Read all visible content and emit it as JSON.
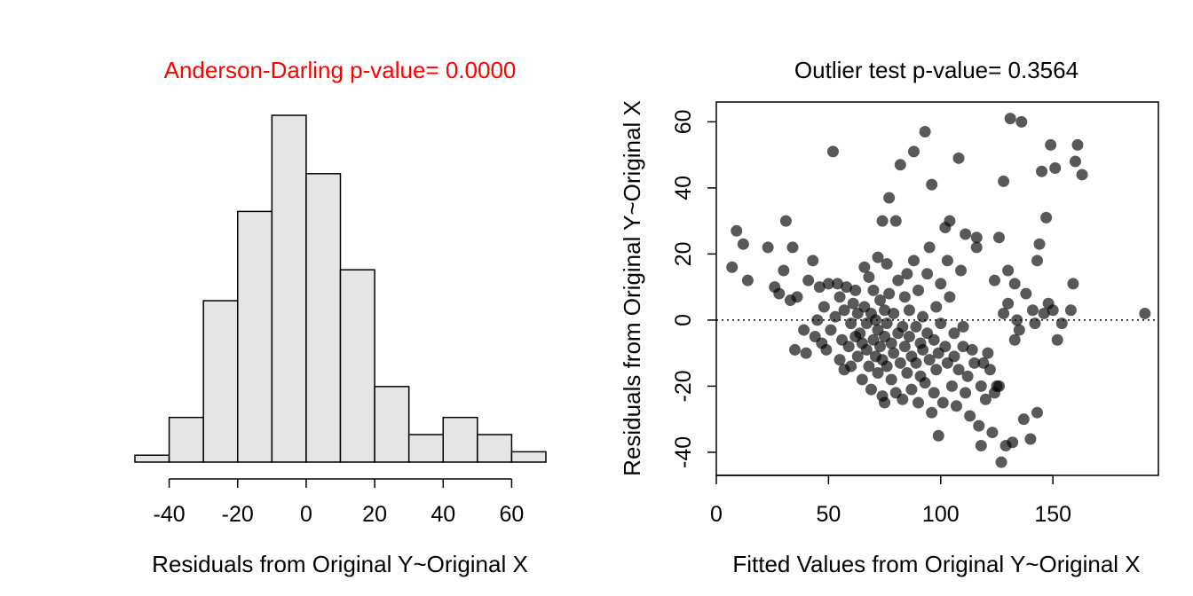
{
  "chart_data": [
    {
      "type": "bar",
      "subtype": "histogram",
      "title": "Anderson-Darling p-value= 0.0000",
      "title_color": "#ff0000",
      "xlabel": "Residuals from Original Y~Original X",
      "ylabel": "",
      "bar_fill": "#e5e5e5",
      "bar_stroke": "#000000",
      "bins": [
        {
          "x0": -50,
          "x1": -40,
          "count": 2
        },
        {
          "x0": -40,
          "x1": -30,
          "count": 13
        },
        {
          "x0": -30,
          "x1": -20,
          "count": 47
        },
        {
          "x0": -20,
          "x1": -10,
          "count": 73
        },
        {
          "x0": -10,
          "x1": 0,
          "count": 101
        },
        {
          "x0": 0,
          "x1": 10,
          "count": 84
        },
        {
          "x0": 10,
          "x1": 20,
          "count": 56
        },
        {
          "x0": 20,
          "x1": 30,
          "count": 22
        },
        {
          "x0": 30,
          "x1": 40,
          "count": 8
        },
        {
          "x0": 40,
          "x1": 50,
          "count": 13
        },
        {
          "x0": 50,
          "x1": 60,
          "count": 8
        },
        {
          "x0": 60,
          "x1": 70,
          "count": 3
        }
      ],
      "xlim": [
        -50,
        70
      ],
      "ylim": [
        0,
        101
      ],
      "x_ticks": [
        -40,
        -20,
        0,
        20,
        40,
        60
      ],
      "x_tick_labels": [
        "-40",
        "-20",
        "0",
        "20",
        "40",
        "60"
      ],
      "y_axis_shown": false
    },
    {
      "type": "scatter",
      "title": "Outlier test p-value= 0.3564",
      "title_color": "#000000",
      "xlabel": "Fitted Values from Original Y~Original X",
      "ylabel": "Residuals from Original Y~Original X",
      "point_color": "#000000",
      "point_opacity": 0.65,
      "xlim": [
        0,
        197
      ],
      "ylim": [
        -47,
        66
      ],
      "x_ticks": [
        0,
        50,
        100,
        150
      ],
      "x_tick_labels": [
        "0",
        "50",
        "100",
        "150"
      ],
      "y_ticks": [
        -40,
        -20,
        0,
        20,
        40,
        60
      ],
      "y_tick_labels": [
        "-40",
        "-20",
        "0",
        "20",
        "40",
        "60"
      ],
      "reference_line": {
        "y": 0,
        "style": "dotted"
      },
      "grid": false,
      "points": [
        [
          7,
          16
        ],
        [
          9,
          27
        ],
        [
          12,
          23
        ],
        [
          14,
          12
        ],
        [
          23,
          22
        ],
        [
          26,
          10
        ],
        [
          28,
          8
        ],
        [
          30,
          15
        ],
        [
          31,
          30
        ],
        [
          33,
          6
        ],
        [
          34,
          22
        ],
        [
          35,
          -9
        ],
        [
          36,
          7
        ],
        [
          39,
          -3
        ],
        [
          40,
          -10
        ],
        [
          41,
          12
        ],
        [
          43,
          18
        ],
        [
          44,
          -5
        ],
        [
          45,
          0
        ],
        [
          46,
          10
        ],
        [
          47,
          -7
        ],
        [
          48,
          4
        ],
        [
          49,
          -9
        ],
        [
          50,
          11
        ],
        [
          51,
          -3
        ],
        [
          52,
          51
        ],
        [
          53,
          1
        ],
        [
          54,
          11
        ],
        [
          55,
          -12
        ],
        [
          55,
          7
        ],
        [
          56,
          -6
        ],
        [
          57,
          3
        ],
        [
          57,
          -15
        ],
        [
          58,
          10
        ],
        [
          59,
          -8
        ],
        [
          60,
          -1
        ],
        [
          60,
          -14
        ],
        [
          61,
          5
        ],
        [
          62,
          -5
        ],
        [
          62,
          9
        ],
        [
          63,
          -11
        ],
        [
          63,
          2
        ],
        [
          64,
          -4
        ],
        [
          65,
          -18
        ],
        [
          65,
          -7
        ],
        [
          66,
          16
        ],
        [
          66,
          4
        ],
        [
          67,
          -1
        ],
        [
          67,
          -9
        ],
        [
          68,
          -14
        ],
        [
          68,
          13
        ],
        [
          69,
          2
        ],
        [
          69,
          -21
        ],
        [
          70,
          -6
        ],
        [
          70,
          9
        ],
        [
          71,
          -11
        ],
        [
          71,
          0
        ],
        [
          72,
          19
        ],
        [
          72,
          -3
        ],
        [
          72,
          -16
        ],
        [
          73,
          6
        ],
        [
          73,
          -8
        ],
        [
          74,
          30
        ],
        [
          74,
          -23
        ],
        [
          74,
          -12
        ],
        [
          75,
          3
        ],
        [
          75,
          -5
        ],
        [
          75,
          -25
        ],
        [
          76,
          17
        ],
        [
          76,
          -1
        ],
        [
          76,
          -14
        ],
        [
          77,
          37
        ],
        [
          77,
          8
        ],
        [
          78,
          -7
        ],
        [
          78,
          -18
        ],
        [
          79,
          2
        ],
        [
          79,
          -10
        ],
        [
          80,
          30
        ],
        [
          80,
          -22
        ],
        [
          81,
          12
        ],
        [
          81,
          -4
        ],
        [
          82,
          47
        ],
        [
          82,
          -13
        ],
        [
          83,
          -2
        ],
        [
          83,
          -24
        ],
        [
          84,
          7
        ],
        [
          84,
          -8
        ],
        [
          85,
          -16
        ],
        [
          85,
          14
        ],
        [
          86,
          -5
        ],
        [
          86,
          3
        ],
        [
          87,
          -11
        ],
        [
          87,
          -21
        ],
        [
          88,
          51
        ],
        [
          88,
          18
        ],
        [
          89,
          -2
        ],
        [
          89,
          -13
        ],
        [
          90,
          -25
        ],
        [
          90,
          9
        ],
        [
          91,
          -7
        ],
        [
          91,
          -17
        ],
        [
          92,
          1
        ],
        [
          92,
          -9
        ],
        [
          93,
          57
        ],
        [
          93,
          -19
        ],
        [
          94,
          14
        ],
        [
          94,
          -4
        ],
        [
          95,
          22
        ],
        [
          95,
          -12
        ],
        [
          96,
          41
        ],
        [
          96,
          -28
        ],
        [
          97,
          -6
        ],
        [
          97,
          -22
        ],
        [
          98,
          4
        ],
        [
          98,
          -15
        ],
        [
          99,
          -10
        ],
        [
          99,
          -35
        ],
        [
          100,
          11
        ],
        [
          100,
          -1
        ],
        [
          101,
          -25
        ],
        [
          102,
          28
        ],
        [
          102,
          -8
        ],
        [
          103,
          18
        ],
        [
          103,
          -13
        ],
        [
          104,
          30
        ],
        [
          104,
          7
        ],
        [
          105,
          -20
        ],
        [
          106,
          -4
        ],
        [
          106,
          -11
        ],
        [
          107,
          -26
        ],
        [
          108,
          49
        ],
        [
          108,
          -15
        ],
        [
          109,
          15
        ],
        [
          110,
          -2
        ],
        [
          110,
          -8
        ],
        [
          111,
          26
        ],
        [
          111,
          -22
        ],
        [
          112,
          -17
        ],
        [
          113,
          -29
        ],
        [
          114,
          -9
        ],
        [
          115,
          -13
        ],
        [
          116,
          22
        ],
        [
          116,
          25
        ],
        [
          117,
          -32
        ],
        [
          118,
          -38
        ],
        [
          118,
          -20
        ],
        [
          119,
          -13
        ],
        [
          120,
          -24
        ],
        [
          121,
          -10
        ],
        [
          122,
          -15
        ],
        [
          123,
          -34
        ],
        [
          124,
          12
        ],
        [
          124,
          -22
        ],
        [
          125,
          -20
        ],
        [
          126,
          25
        ],
        [
          126,
          -20
        ],
        [
          127,
          -43
        ],
        [
          128,
          2
        ],
        [
          128,
          42
        ],
        [
          129,
          -38
        ],
        [
          130,
          15
        ],
        [
          130,
          5
        ],
        [
          131,
          61
        ],
        [
          132,
          -37
        ],
        [
          133,
          -6
        ],
        [
          133,
          11
        ],
        [
          134,
          0
        ],
        [
          135,
          -3
        ],
        [
          136,
          60
        ],
        [
          137,
          -30
        ],
        [
          138,
          8
        ],
        [
          140,
          -36
        ],
        [
          141,
          3
        ],
        [
          142,
          -1
        ],
        [
          143,
          18
        ],
        [
          143,
          -28
        ],
        [
          144,
          23
        ],
        [
          145,
          45
        ],
        [
          146,
          2
        ],
        [
          147,
          31
        ],
        [
          148,
          5
        ],
        [
          149,
          53
        ],
        [
          150,
          3
        ],
        [
          151,
          46
        ],
        [
          152,
          -6
        ],
        [
          154,
          -1
        ],
        [
          158,
          3
        ],
        [
          159,
          11
        ],
        [
          160,
          48
        ],
        [
          161,
          53
        ],
        [
          163,
          44
        ],
        [
          191,
          2
        ]
      ]
    }
  ]
}
